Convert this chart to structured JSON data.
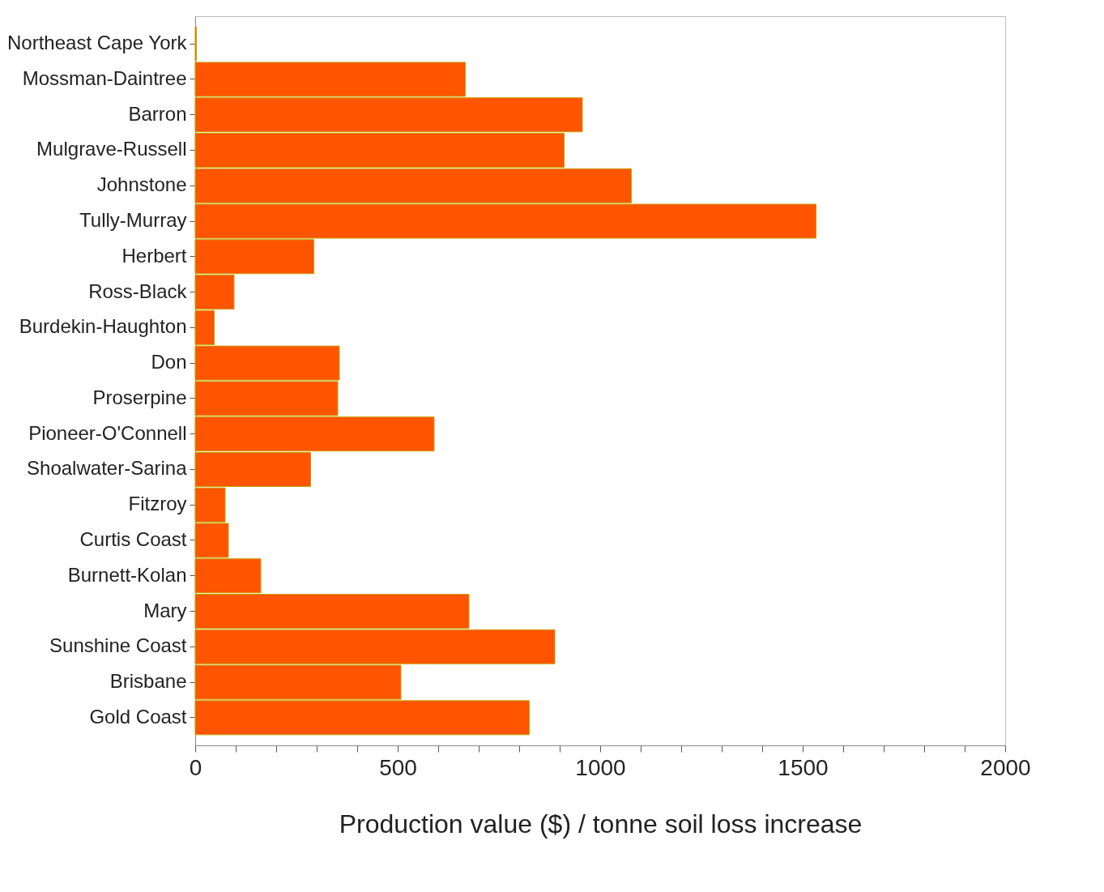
{
  "chart_data": {
    "type": "bar",
    "orientation": "horizontal",
    "xlabel": "Production value ($) / tonne soil loss increase",
    "categories": [
      "Northeast Cape York",
      "Mossman-Daintree",
      "Barron",
      "Mulgrave-Russell",
      "Johnstone",
      "Tully-Murray",
      "Herbert",
      "Ross-Black",
      "Burdekin-Haughton",
      "Don",
      "Proserpine",
      "Pioneer-O'Connell",
      "Shoalwater-Sarina",
      "Fitzroy",
      "Curtis Coast",
      "Burnett-Kolan",
      "Mary",
      "Sunshine Coast",
      "Brisbane",
      "Gold Coast"
    ],
    "values": [
      3,
      667,
      956,
      911,
      1077,
      1533,
      293,
      96,
      47,
      356,
      352,
      590,
      285,
      74,
      82,
      162,
      676,
      888,
      508,
      825
    ],
    "color": "#ff5500",
    "xlim": [
      0,
      2000
    ],
    "xticks": [
      0,
      {
        "value": 100,
        "label": null
      },
      {
        "value": 200,
        "label": null
      },
      {
        "value": 300,
        "label": null
      },
      {
        "value": 400,
        "label": null
      },
      500,
      {
        "value": 600,
        "label": null
      },
      {
        "value": 700,
        "label": null
      },
      {
        "value": 800,
        "label": null
      },
      {
        "value": 900,
        "label": null
      },
      1000,
      {
        "value": 1100,
        "label": null
      },
      {
        "value": 1200,
        "label": null
      },
      {
        "value": 1300,
        "label": null
      },
      {
        "value": 1400,
        "label": null
      },
      1500,
      {
        "value": 1600,
        "label": null
      },
      {
        "value": 1700,
        "label": null
      },
      {
        "value": 1800,
        "label": null
      },
      {
        "value": 1900,
        "label": null
      },
      2000
    ],
    "grid": false
  }
}
